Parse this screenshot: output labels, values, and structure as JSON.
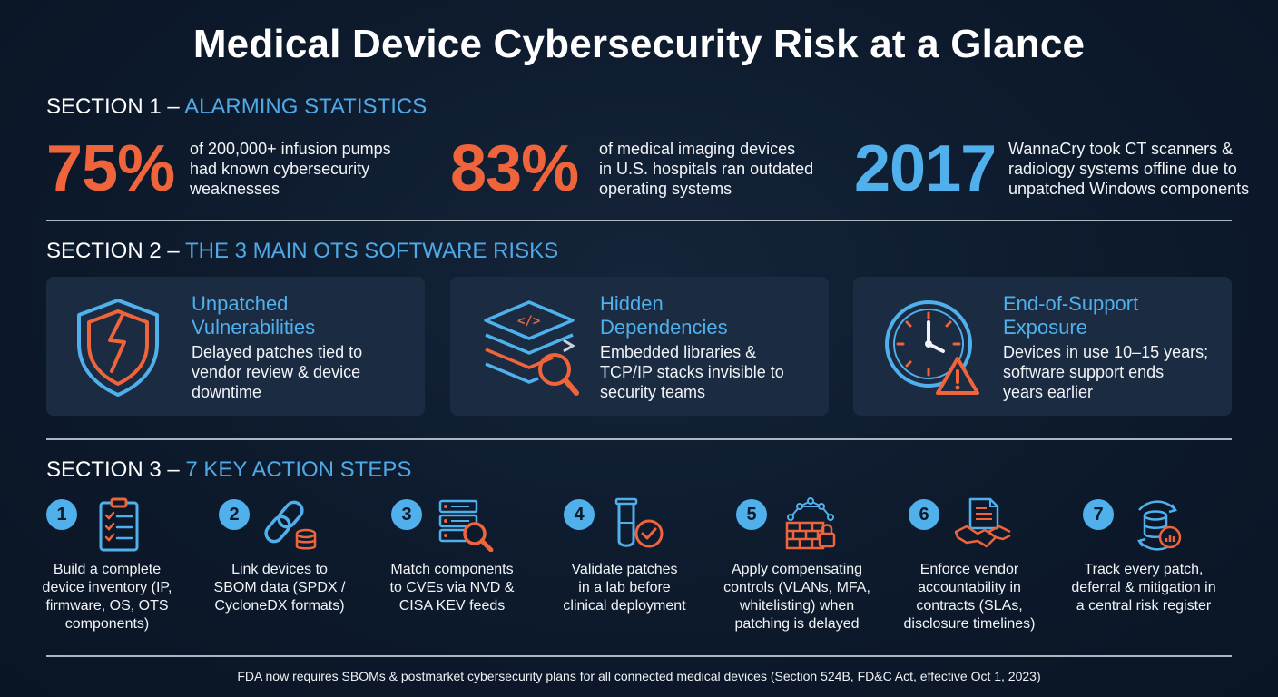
{
  "title": "Medical Device Cybersecurity Risk at a Glance",
  "section1": {
    "prefix": "SECTION 1 –",
    "heading": "ALARMING STATISTICS",
    "stats": [
      {
        "value": "75%",
        "desc_lines": [
          "of 200,000+ infusion pumps",
          "had known cybersecurity",
          "weaknesses"
        ],
        "color": "#f0643c"
      },
      {
        "value": "83%",
        "desc_lines": [
          "of medical imaging devices",
          "in U.S. hospitals ran outdated",
          "operating systems"
        ],
        "color": "#f0643c"
      },
      {
        "value": "2017",
        "desc_lines": [
          "WannaCry took CT scanners &",
          "radiology systems offline due to",
          "unpatched Windows components"
        ],
        "color": "#4fb0ec"
      }
    ]
  },
  "section2": {
    "prefix": "SECTION 2 –",
    "heading": "THE 3 MAIN OTS SOFTWARE RISKS",
    "cards": [
      {
        "title_lines": [
          "Unpatched",
          "Vulnerabilities"
        ],
        "desc_lines": [
          "Delayed patches tied to",
          "vendor review & device",
          "downtime"
        ],
        "icon": "broken-shield-icon"
      },
      {
        "title_lines": [
          "Hidden",
          "Dependencies"
        ],
        "desc_lines": [
          "Embedded libraries &",
          "TCP/IP stacks invisible to",
          "security teams"
        ],
        "icon": "code-layers-magnifier-icon"
      },
      {
        "title_lines": [
          "End-of-Support",
          "Exposure"
        ],
        "desc_lines": [
          "Devices in use 10–15 years;",
          "software support ends",
          "years earlier"
        ],
        "icon": "clock-warning-icon"
      }
    ]
  },
  "section3": {
    "prefix": "SECTION 3 –",
    "heading": "7 KEY ACTION STEPS",
    "steps": [
      {
        "number": "1",
        "text_lines": [
          "Build a complete",
          "device inventory (IP,",
          "firmware, OS, OTS",
          "components)"
        ],
        "icon": "clipboard-checklist-icon"
      },
      {
        "number": "2",
        "text_lines": [
          "Link devices to",
          "SBOM data (SPDX /",
          "CycloneDX formats)"
        ],
        "icon": "chain-link-database-icon"
      },
      {
        "number": "3",
        "text_lines": [
          "Match components",
          "to CVEs via NVD &",
          "CISA KEV feeds"
        ],
        "icon": "server-magnifier-icon"
      },
      {
        "number": "4",
        "text_lines": [
          "Validate patches",
          "in a lab before",
          "clinical deployment"
        ],
        "icon": "test-tube-check-icon"
      },
      {
        "number": "5",
        "text_lines": [
          "Apply compensating",
          "controls (VLANs, MFA,",
          "whitelisting) when",
          "patching is delayed"
        ],
        "icon": "firewall-network-lock-icon"
      },
      {
        "number": "6",
        "text_lines": [
          "Enforce vendor",
          "accountability in",
          "contracts (SLAs,",
          "disclosure timelines)"
        ],
        "icon": "contract-handshake-icon"
      },
      {
        "number": "7",
        "text_lines": [
          "Track every patch,",
          "deferral & mitigation in",
          "a central risk register"
        ],
        "icon": "database-cycle-chart-icon"
      }
    ]
  },
  "footer": "FDA now requires SBOMs & postmarket cybersecurity plans for all connected medical devices (Section 524B, FD&C Act, effective Oct 1, 2023)",
  "colors": {
    "accent_blue": "#4fb0ec",
    "accent_orange": "#f0643c",
    "card_bg": "#1b2b42",
    "background": "#0d1a2c"
  }
}
